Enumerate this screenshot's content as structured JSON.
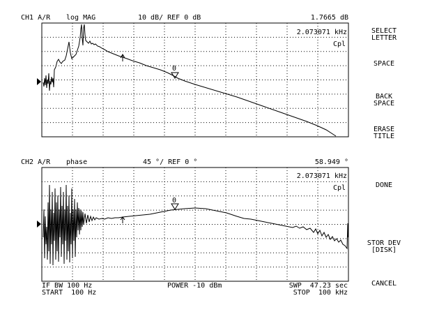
{
  "ch1": {
    "header_channel": "CH1 A/R",
    "header_format": "log MAG",
    "header_scale": "10 dB/ REF 0 dB",
    "header_marker_value": "1.7665 dB",
    "marker_freq": "2.073071 kHz",
    "coupling": "Cpl",
    "marker_label": "0"
  },
  "ch2": {
    "header_channel": "CH2 A/R",
    "header_format": "phase",
    "header_scale": "45 °/ REF 0 °",
    "header_marker_value": "58.949 °",
    "marker_freq": "2.073071 kHz",
    "coupling": "Cpl",
    "marker_label": "0"
  },
  "footer": {
    "if_bw": "IF BW 100 Hz",
    "start": "START  100 Hz",
    "power": "POWER -10 dBm",
    "swp": "SWP  47.23 sec",
    "stop": "STOP  100 kHz"
  },
  "softkeys": {
    "select_letter": [
      "SELECT",
      "LETTER"
    ],
    "space": "SPACE",
    "back_space": [
      "BACK",
      "SPACE"
    ],
    "erase_title": [
      "ERASE",
      "TITLE"
    ],
    "done": "DONE",
    "stor_dev": [
      "STOR DEV",
      "[DISK]"
    ],
    "cancel": "CANCEL"
  },
  "colors": {
    "trace": "#000000",
    "grid": "#000000",
    "background": "#ffffff"
  }
}
